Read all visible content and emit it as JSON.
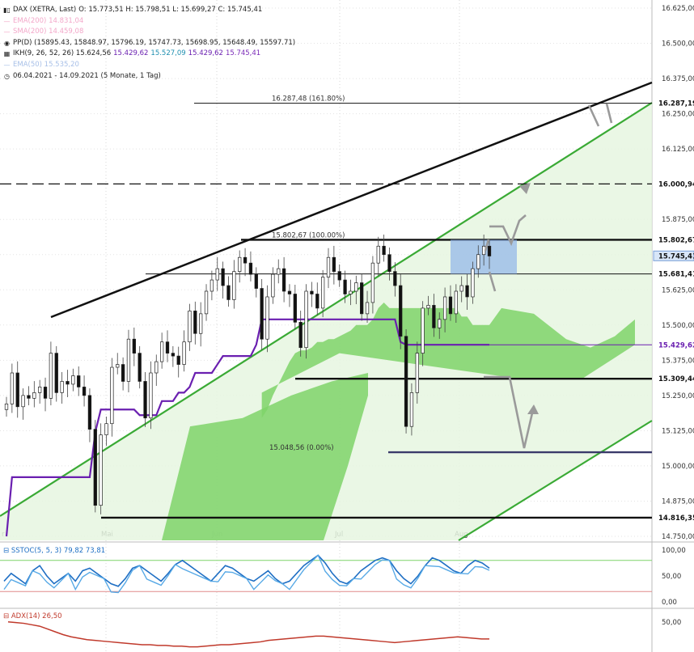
{
  "legend": {
    "symbol": "DAX (XETRA, Last)",
    "ohlc": "O: 15.773,51  H: 15.798,51  L: 15.699,27  C: 15.745,41",
    "ema200": "EMA(200)  14.831,04",
    "sma200": "SMA(200)  14.459,08",
    "pp": "PP(D)  (15895.43, 15848.97, 15796.19, 15747.73, 15698.95, 15648.49, 15597.71)",
    "ikh": "IKH(9, 26, 52, 26)  15.624,56",
    "ikh_v1": "15.429,62",
    "ikh_v2": "15.527,09",
    "ikh_v3": "15.429,62",
    "ikh_v4": "15.745,41",
    "ema50": "EMA(50)  15.535,20",
    "range": "06.04.2021 - 14.09.2021  (5 Monate, 1 Tag)"
  },
  "colors": {
    "up": "#ffffff",
    "down": "#111111",
    "cloud": "#7fd36a",
    "cloud_light": "#e6f6e1",
    "kijun": "#6a1fb0",
    "channel": "#3aaa35",
    "stoch1": "#1f6fc4",
    "stoch2": "#57a9e6",
    "adx": "#c0392b"
  },
  "chart_data": [
    {
      "type": "line",
      "title": "DAX (XETRA, Last)",
      "x_labels": [
        "Mai",
        "Jun",
        "Jul",
        "Aug"
      ],
      "ylim": [
        14750,
        16625
      ],
      "y_ticks": [
        "16.625,00",
        "16.500,00",
        "16.375,00",
        "16.250,00",
        "16.125,00",
        "15.875,00",
        "15.750,00",
        "15.625,00",
        "15.500,00",
        "15.375,00",
        "15.250,00",
        "15.125,00",
        "15.000,00",
        "14.875,00",
        "14.750,00"
      ],
      "levels": [
        {
          "label": "16.287,19",
          "value": 16287.19,
          "box": "dark"
        },
        {
          "label": "16.000,94",
          "value": 16000.94,
          "box": "dark"
        },
        {
          "label": "15.802,67",
          "value": 15802.67,
          "box": "dark"
        },
        {
          "label": "15.745,41",
          "value": 15745.41,
          "box": "light"
        },
        {
          "label": "15.681,41",
          "value": 15681.41,
          "box": "dark"
        },
        {
          "label": "15.429,62",
          "value": 15429.62,
          "box": "purple"
        },
        {
          "label": "15.309,44",
          "value": 15309.44,
          "box": "dark"
        },
        {
          "label": "14.816,35",
          "value": 14816.35,
          "box": "dark"
        }
      ],
      "annotations": [
        {
          "text": "16.287,48 (161.80%)",
          "value": 16287.48
        },
        {
          "text": "15.802,67 (100.00%)",
          "value": 15802.67
        },
        {
          "text": "15.048,56 (0.00%)",
          "value": 15048.56
        }
      ],
      "close": [
        15220,
        15330,
        15210,
        15250,
        15240,
        15260,
        15280,
        15240,
        15400,
        15260,
        15300,
        15290,
        15320,
        15280,
        15250,
        15130,
        14860,
        15110,
        15150,
        15350,
        15360,
        15300,
        15450,
        15400,
        15300,
        15170,
        15330,
        15370,
        15440,
        15400,
        15390,
        15360,
        15440,
        15550,
        15470,
        15540,
        15620,
        15660,
        15700,
        15640,
        15590,
        15690,
        15740,
        15720,
        15680,
        15630,
        15450,
        15600,
        15680,
        15700,
        15620,
        15610,
        15510,
        15420,
        15620,
        15610,
        15560,
        15670,
        15740,
        15690,
        15660,
        15610,
        15620,
        15650,
        15540,
        15580,
        15720,
        15780,
        15750,
        15690,
        15640,
        15460,
        15140,
        15260,
        15400,
        15560,
        15570,
        15490,
        15520,
        15600,
        15540,
        15620,
        15640,
        15600,
        15700,
        15750,
        15780,
        15745
      ],
      "kijun": [
        14750,
        14960,
        14960,
        14960,
        14960,
        14960,
        14960,
        14960,
        14960,
        14960,
        14960,
        14960,
        14960,
        14960,
        14960,
        14960,
        15120,
        15200,
        15200,
        15200,
        15200,
        15200,
        15200,
        15200,
        15180,
        15180,
        15180,
        15180,
        15230,
        15230,
        15230,
        15260,
        15260,
        15280,
        15330,
        15330,
        15330,
        15330,
        15360,
        15390,
        15390,
        15390,
        15390,
        15390,
        15390,
        15430,
        15520,
        15520,
        15520,
        15520,
        15520,
        15520,
        15520,
        15520,
        15520,
        15520,
        15520,
        15520,
        15520,
        15520,
        15520,
        15520,
        15520,
        15520,
        15520,
        15520,
        15520,
        15520,
        15520,
        15520,
        15520,
        15440,
        15430,
        15430,
        15430,
        15430,
        15430,
        15430,
        15430,
        15430,
        15430,
        15430,
        15430,
        15430,
        15430,
        15430,
        15430,
        15430
      ],
      "cloud_a": [
        null,
        null,
        null,
        null,
        null,
        null,
        null,
        null,
        null,
        null,
        null,
        null,
        null,
        null,
        null,
        null,
        null,
        null,
        null,
        null,
        null,
        null,
        null,
        null,
        null,
        null,
        null,
        null,
        null,
        null,
        null,
        null,
        null,
        null,
        null,
        null,
        null,
        null,
        null,
        null,
        null,
        null,
        null,
        null,
        null,
        null,
        15170,
        15200,
        15250,
        15290,
        15330,
        15370,
        15400,
        15410,
        15410,
        15420,
        15440,
        15440,
        15450,
        15450,
        15460,
        15470,
        15480,
        15500,
        15500,
        15500,
        15520,
        15560,
        15580,
        15560,
        15560,
        15560,
        15560,
        15560,
        15560,
        15560,
        15560,
        15560,
        15560,
        15560,
        15560,
        15560,
        15530,
        15530,
        15500,
        15500,
        15500,
        15500
      ],
      "stoch": {
        "title": "SSTOC(5, 5, 3)",
        "k_label": "79,82",
        "d_label": "73,81",
        "ticks": [
          "100,00",
          "50,00",
          "0,00"
        ]
      },
      "adx": {
        "title": "ADX(14)",
        "value_label": "26,50",
        "ticks": [
          "50,00"
        ]
      }
    }
  ]
}
